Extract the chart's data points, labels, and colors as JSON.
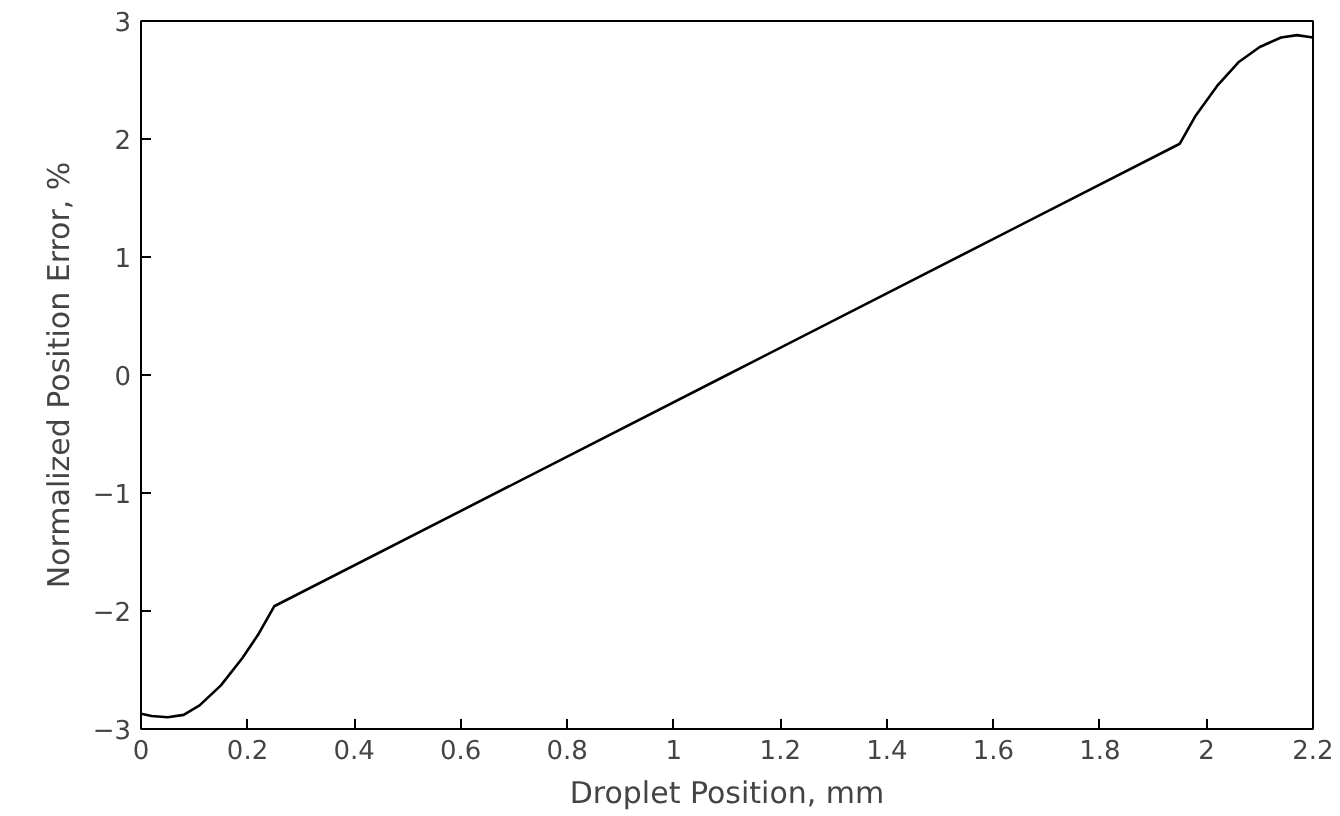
{
  "chart_data": {
    "type": "line",
    "xlabel": "Droplet Position, mm",
    "ylabel": "Normalized Position Error, %",
    "x": [
      0,
      0.02,
      0.05,
      0.08,
      0.11,
      0.15,
      0.19,
      0.22,
      0.25,
      1.1,
      1.95,
      1.98,
      2.02,
      2.06,
      2.1,
      2.14,
      2.17,
      2.2
    ],
    "series": [
      {
        "color": "#000000",
        "values": [
          -2.87,
          -2.89,
          -2.9,
          -2.88,
          -2.8,
          -2.63,
          -2.4,
          -2.2,
          -1.96,
          0,
          1.96,
          2.2,
          2.45,
          2.65,
          2.78,
          2.86,
          2.88,
          2.86
        ]
      }
    ],
    "xlim": [
      0,
      2.2
    ],
    "ylim": [
      -3,
      3
    ],
    "xticks": [
      0,
      0.2,
      0.4,
      0.6,
      0.8,
      1,
      1.2,
      1.4,
      1.6,
      1.8,
      2,
      2.2
    ],
    "yticks": [
      {
        "value": -3,
        "label": "−3"
      },
      {
        "value": -2,
        "label": "−2"
      },
      {
        "value": -1,
        "label": "−1"
      },
      0,
      1,
      2,
      3
    ],
    "grid": false,
    "marker": "none",
    "line_style": "solid"
  }
}
